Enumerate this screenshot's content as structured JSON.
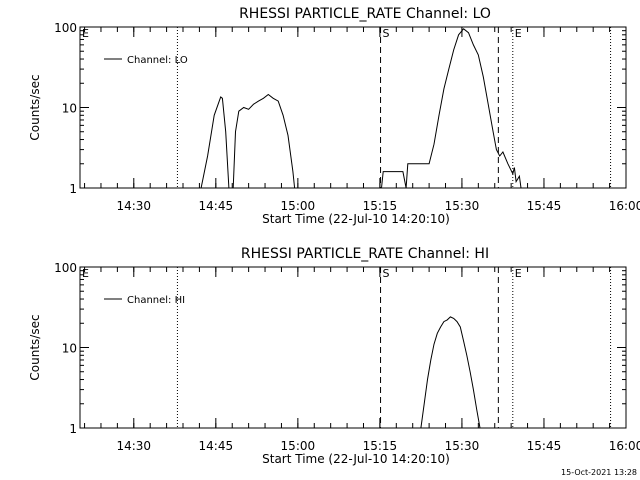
{
  "footer_timestamp": "15-Oct-2021 13:28",
  "chart_data": [
    {
      "type": "line",
      "title": "RHESSI PARTICLE_RATE Channel: LO",
      "ylabel": "Counts/sec",
      "xlabel": "Start Time (22-Jul-10 14:20:10)",
      "yscale": "log",
      "ylim": [
        1,
        100
      ],
      "xlim": [
        14.3361,
        16.0
      ],
      "xticks": [
        14.5,
        14.75,
        15.0,
        15.25,
        15.5,
        15.75,
        16.0
      ],
      "xtick_labels": [
        "14:30",
        "14:45",
        "15:00",
        "15:15",
        "15:30",
        "15:45",
        "16:00"
      ],
      "yticks": [
        1,
        10,
        100
      ],
      "ytick_labels": [
        "1",
        "10",
        "100"
      ],
      "legend": {
        "label": "Channel: LO",
        "position": "top-left"
      },
      "markers": [
        {
          "x": 14.3361,
          "label": "E",
          "style": "none"
        },
        {
          "x": 14.633,
          "label": "",
          "style": "dotted"
        },
        {
          "x": 15.252,
          "label": "S",
          "style": "dashed"
        },
        {
          "x": 15.611,
          "label": "",
          "style": "dashed"
        },
        {
          "x": 15.655,
          "label": "E",
          "style": "dotted"
        },
        {
          "x": 15.953,
          "label": "",
          "style": "dotted"
        }
      ],
      "series": [
        {
          "segments": [
            {
              "x": [
                14.705,
                14.725,
                14.745,
                14.765,
                14.77,
                14.78,
                14.79
              ],
              "y": [
                1,
                2.5,
                8,
                13.5,
                13,
                5,
                1
              ]
            },
            {
              "x": [
                14.803,
                14.81,
                14.82,
                14.835,
                14.85,
                14.865,
                14.88,
                14.895,
                14.91,
                14.925,
                14.94,
                14.955,
                14.97,
                14.985,
                14.99
              ],
              "y": [
                1,
                5,
                9,
                10,
                9.5,
                11,
                12,
                13,
                14.5,
                13,
                12,
                8,
                4.5,
                1.6,
                1
              ]
            },
            {
              "x": [
                15.255,
                15.26,
                15.3,
                15.32,
                15.33,
                15.335,
                15.4,
                15.415,
                15.43,
                15.445,
                15.46,
                15.475,
                15.49,
                15.505,
                15.52,
                15.535,
                15.55,
                15.565,
                15.58,
                15.595,
                15.605,
                15.615,
                15.625,
                15.64,
                15.655,
                15.66,
                15.665,
                15.675,
                15.68,
                15.69
              ],
              "y": [
                1,
                1.6,
                1.6,
                1.6,
                1,
                2,
                2,
                3.5,
                8,
                17,
                30,
                52,
                80,
                95,
                85,
                60,
                45,
                24,
                11,
                5,
                3,
                2.5,
                2.8,
                2,
                1.5,
                1.8,
                1.2,
                1.4,
                1,
                1
              ]
            }
          ]
        }
      ]
    },
    {
      "type": "line",
      "title": "RHESSI PARTICLE_RATE Channel: HI",
      "ylabel": "Counts/sec",
      "xlabel": "Start Time (22-Jul-10 14:20:10)",
      "yscale": "log",
      "ylim": [
        1,
        100
      ],
      "xlim": [
        14.3361,
        16.0
      ],
      "xticks": [
        14.5,
        14.75,
        15.0,
        15.25,
        15.5,
        15.75,
        16.0
      ],
      "xtick_labels": [
        "14:30",
        "14:45",
        "15:00",
        "15:15",
        "15:30",
        "15:45",
        "16:00"
      ],
      "yticks": [
        1,
        10,
        100
      ],
      "ytick_labels": [
        "1",
        "10",
        "100"
      ],
      "legend": {
        "label": "Channel: HI",
        "position": "top-left"
      },
      "markers": [
        {
          "x": 14.3361,
          "label": "E",
          "style": "none"
        },
        {
          "x": 14.633,
          "label": "",
          "style": "dotted"
        },
        {
          "x": 15.252,
          "label": "S",
          "style": "dashed"
        },
        {
          "x": 15.611,
          "label": "",
          "style": "dashed"
        },
        {
          "x": 15.655,
          "label": "E",
          "style": "dotted"
        },
        {
          "x": 15.953,
          "label": "",
          "style": "dotted"
        }
      ],
      "series": [
        {
          "segments": [
            {
              "x": [
                15.375,
                15.385,
                15.395,
                15.405,
                15.415,
                15.425,
                15.435,
                15.445,
                15.455,
                15.465,
                15.475,
                15.485,
                15.495,
                15.505,
                15.515,
                15.525,
                15.535,
                15.545,
                15.555
              ],
              "y": [
                1,
                2,
                4,
                7,
                11,
                15,
                18,
                21,
                22,
                24,
                23,
                21,
                18,
                12,
                8,
                5,
                3,
                1.7,
                1
              ]
            }
          ]
        }
      ]
    }
  ]
}
